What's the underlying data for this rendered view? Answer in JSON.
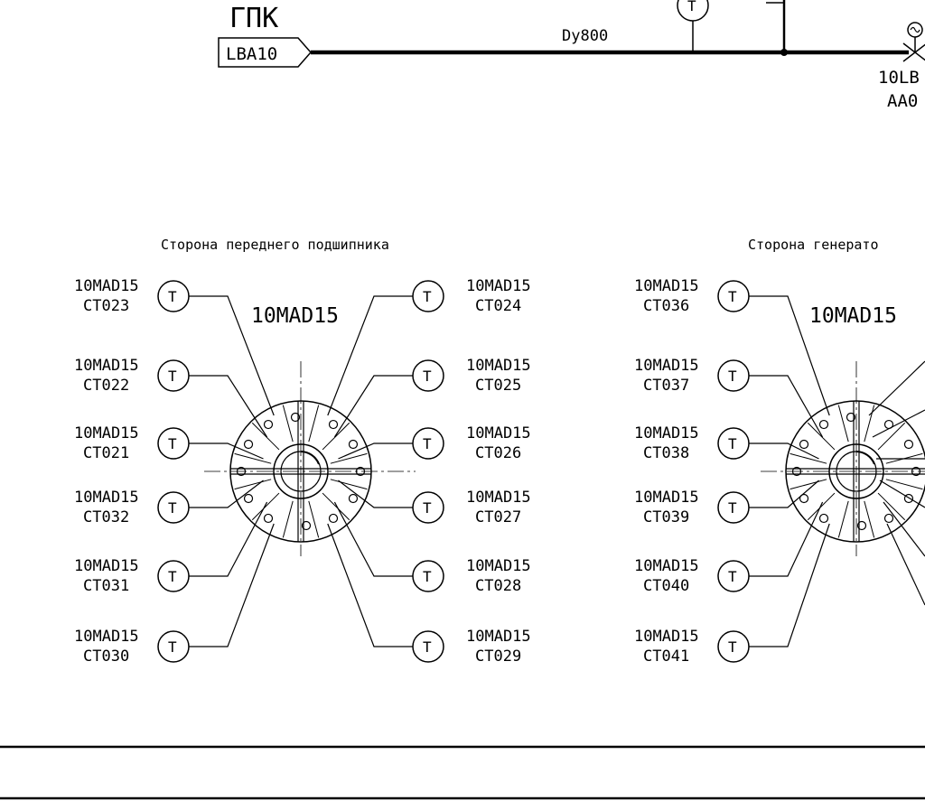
{
  "pipeline": {
    "system_label": "ГПК",
    "source_tag": "LBA10",
    "pipe_size": "Dy800",
    "valve_tag_line1": "10LB",
    "valve_tag_line2": "AA0",
    "instrument_symbol": "T"
  },
  "left_group": {
    "caption": "Сторона переднего подшипника",
    "unit": "10MAD15",
    "sensors_left": [
      {
        "l1": "10MAD15",
        "l2": "CT023"
      },
      {
        "l1": "10MAD15",
        "l2": "CT022"
      },
      {
        "l1": "10MAD15",
        "l2": "CT021"
      },
      {
        "l1": "10MAD15",
        "l2": "CT032"
      },
      {
        "l1": "10MAD15",
        "l2": "CT031"
      },
      {
        "l1": "10MAD15",
        "l2": "CT030"
      }
    ],
    "sensors_right": [
      {
        "l1": "10MAD15",
        "l2": "CT024"
      },
      {
        "l1": "10MAD15",
        "l2": "CT025"
      },
      {
        "l1": "10MAD15",
        "l2": "CT026"
      },
      {
        "l1": "10MAD15",
        "l2": "CT027"
      },
      {
        "l1": "10MAD15",
        "l2": "CT028"
      },
      {
        "l1": "10MAD15",
        "l2": "CT029"
      }
    ]
  },
  "right_group": {
    "caption": "Сторона генерато",
    "unit": "10MAD15",
    "sensors_left": [
      {
        "l1": "10MAD15",
        "l2": "CT036"
      },
      {
        "l1": "10MAD15",
        "l2": "CT037"
      },
      {
        "l1": "10MAD15",
        "l2": "CT038"
      },
      {
        "l1": "10MAD15",
        "l2": "CT039"
      },
      {
        "l1": "10MAD15",
        "l2": "CT040"
      },
      {
        "l1": "10MAD15",
        "l2": "CT041"
      }
    ]
  },
  "instrument_symbol": "T"
}
